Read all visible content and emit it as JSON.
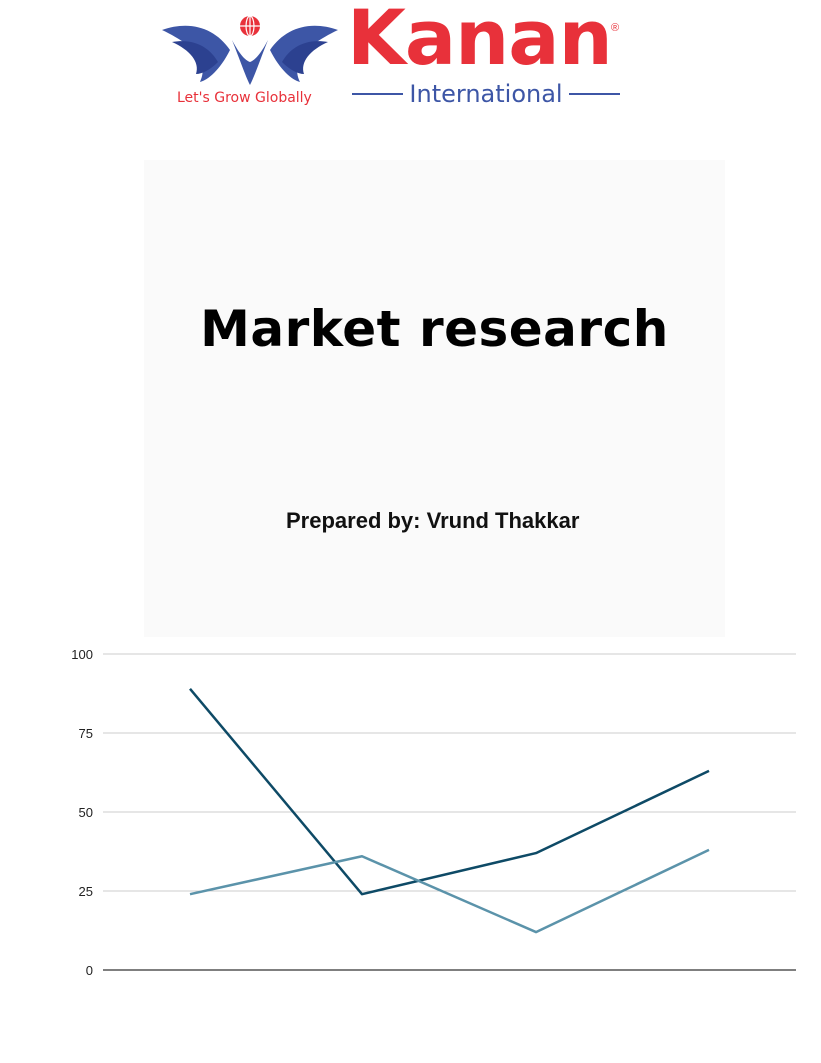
{
  "brand": {
    "name": "Kanan",
    "registered_mark": "®",
    "subname": "International",
    "tagline": "Let's Grow Globally",
    "colors": {
      "red": "#e8313a",
      "blue": "#3d56a6"
    },
    "emblem_icon": "winged-globe-icon"
  },
  "cover": {
    "title": "Market research",
    "prepared_by": "Prepared by: Vrund Thakkar"
  },
  "chart_data": {
    "type": "line",
    "categories": [
      "",
      "",
      "",
      ""
    ],
    "ylim": [
      0,
      100
    ],
    "y_ticks": [
      "0",
      "25",
      "50",
      "75",
      "100"
    ],
    "grid": true,
    "legend": "none",
    "series": [
      {
        "color": "#0e4a66",
        "values": [
          89,
          24,
          37,
          63
        ]
      },
      {
        "color": "#5b93aa",
        "values": [
          24,
          36,
          12,
          38
        ]
      }
    ]
  }
}
